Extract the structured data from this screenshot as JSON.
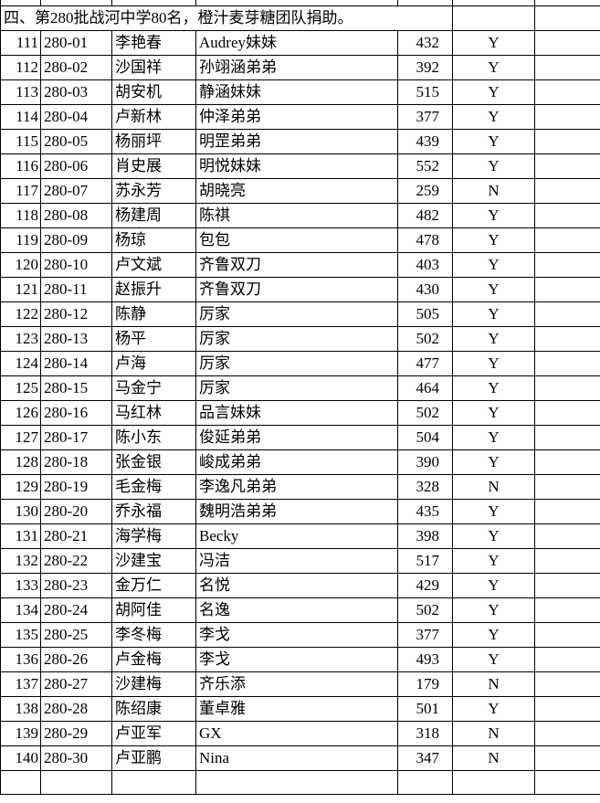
{
  "section_title": "四、第280批战河中学80名，橙汁麦芽糖团队捐助。",
  "rows": [
    {
      "no": "111",
      "code": "280-01",
      "student": "李艳春",
      "sponsor": "Audrey妹妹",
      "score": "432",
      "flag": "Y"
    },
    {
      "no": "112",
      "code": "280-02",
      "student": "沙国祥",
      "sponsor": "孙翊涵弟弟",
      "score": "392",
      "flag": "Y"
    },
    {
      "no": "113",
      "code": "280-03",
      "student": "胡安机",
      "sponsor": "静涵妹妹",
      "score": "515",
      "flag": "Y"
    },
    {
      "no": "114",
      "code": "280-04",
      "student": "卢新林",
      "sponsor": "仲泽弟弟",
      "score": "377",
      "flag": "Y"
    },
    {
      "no": "115",
      "code": "280-05",
      "student": "杨丽坪",
      "sponsor": "明罡弟弟",
      "score": "439",
      "flag": "Y"
    },
    {
      "no": "116",
      "code": "280-06",
      "student": "肖史展",
      "sponsor": "明悦妹妹",
      "score": "552",
      "flag": "Y"
    },
    {
      "no": "117",
      "code": "280-07",
      "student": "苏永芳",
      "sponsor": "胡晓亮",
      "score": "259",
      "flag": "N"
    },
    {
      "no": "118",
      "code": "280-08",
      "student": "杨建周",
      "sponsor": "陈祺",
      "score": "482",
      "flag": "Y"
    },
    {
      "no": "119",
      "code": "280-09",
      "student": "杨琼",
      "sponsor": "包包",
      "score": "478",
      "flag": "Y"
    },
    {
      "no": "120",
      "code": "280-10",
      "student": "卢文斌",
      "sponsor": "齐鲁双刀",
      "score": "403",
      "flag": "Y"
    },
    {
      "no": "121",
      "code": "280-11",
      "student": "赵振升",
      "sponsor": "齐鲁双刀",
      "score": "430",
      "flag": "Y"
    },
    {
      "no": "122",
      "code": "280-12",
      "student": "陈静",
      "sponsor": "厉家",
      "score": "505",
      "flag": "Y"
    },
    {
      "no": "123",
      "code": "280-13",
      "student": "杨平",
      "sponsor": "厉家",
      "score": "502",
      "flag": "Y"
    },
    {
      "no": "124",
      "code": "280-14",
      "student": "卢海",
      "sponsor": "厉家",
      "score": "477",
      "flag": "Y"
    },
    {
      "no": "125",
      "code": "280-15",
      "student": "马金宁",
      "sponsor": "厉家",
      "score": "464",
      "flag": "Y"
    },
    {
      "no": "126",
      "code": "280-16",
      "student": "马红林",
      "sponsor": "品言妹妹",
      "score": "502",
      "flag": "Y"
    },
    {
      "no": "127",
      "code": "280-17",
      "student": "陈小东",
      "sponsor": "俊延弟弟",
      "score": "504",
      "flag": "Y"
    },
    {
      "no": "128",
      "code": "280-18",
      "student": "张金银",
      "sponsor": "峻成弟弟",
      "score": "390",
      "flag": "Y"
    },
    {
      "no": "129",
      "code": "280-19",
      "student": "毛金梅",
      "sponsor": "李逸凡弟弟",
      "score": "328",
      "flag": "N"
    },
    {
      "no": "130",
      "code": "280-20",
      "student": "乔永福",
      "sponsor": "魏明浩弟弟",
      "score": "435",
      "flag": "Y"
    },
    {
      "no": "131",
      "code": "280-21",
      "student": "海学梅",
      "sponsor": "Becky",
      "score": "398",
      "flag": "Y"
    },
    {
      "no": "132",
      "code": "280-22",
      "student": "沙建宝",
      "sponsor": "冯洁",
      "score": "517",
      "flag": "Y"
    },
    {
      "no": "133",
      "code": "280-23",
      "student": "金万仁",
      "sponsor": "名悦",
      "score": "429",
      "flag": "Y"
    },
    {
      "no": "134",
      "code": "280-24",
      "student": "胡阿佳",
      "sponsor": "名逸",
      "score": "502",
      "flag": "Y"
    },
    {
      "no": "135",
      "code": "280-25",
      "student": "李冬梅",
      "sponsor": "李戈",
      "score": "377",
      "flag": "Y"
    },
    {
      "no": "136",
      "code": "280-26",
      "student": "卢金梅",
      "sponsor": "李戈",
      "score": "493",
      "flag": "Y"
    },
    {
      "no": "137",
      "code": "280-27",
      "student": "沙建梅",
      "sponsor": "齐乐添",
      "score": "179",
      "flag": "N"
    },
    {
      "no": "138",
      "code": "280-28",
      "student": "陈绍康",
      "sponsor": "董卓雅",
      "score": "501",
      "flag": "Y"
    },
    {
      "no": "139",
      "code": "280-29",
      "student": "卢亚军",
      "sponsor": "GX",
      "score": "318",
      "flag": "N"
    },
    {
      "no": "140",
      "code": "280-30",
      "student": "卢亚鹏",
      "sponsor": "Nina",
      "score": "347",
      "flag": "N"
    }
  ]
}
